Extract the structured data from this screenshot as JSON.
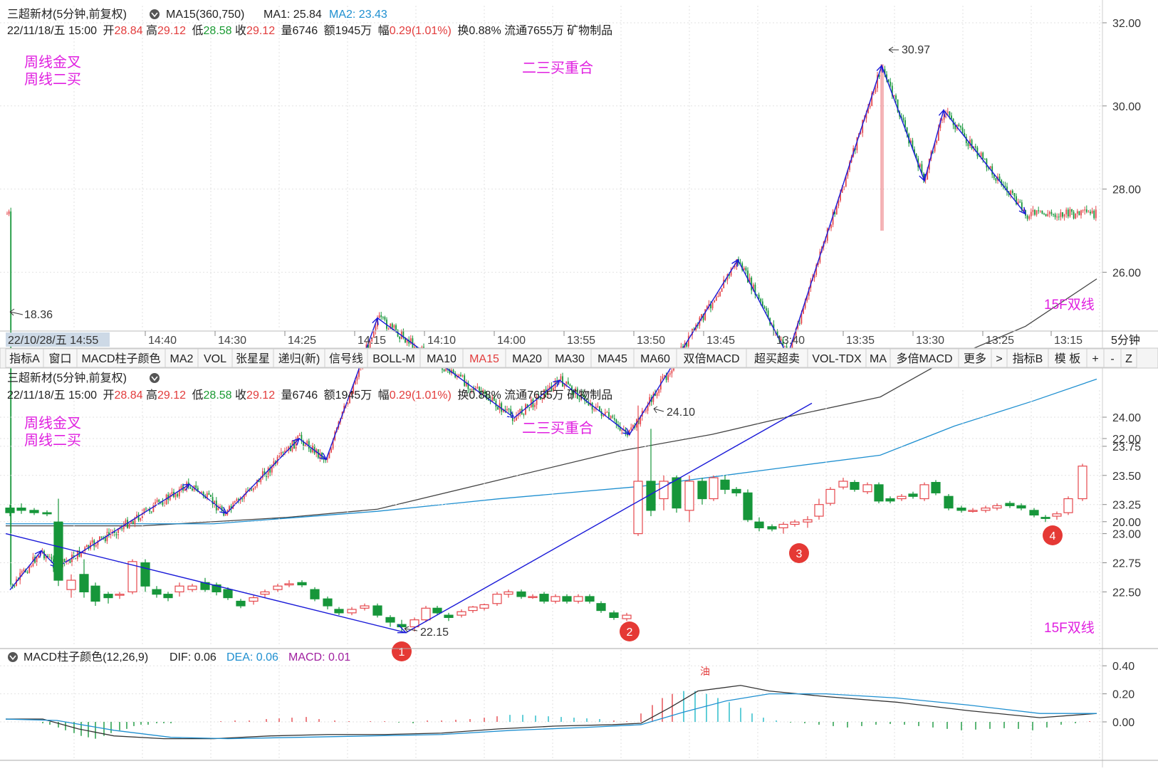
{
  "top": {
    "stock_line": "三超新材(5分钟,前复权)",
    "ma_ind": "MA15(360,750)",
    "ma1": "MA1: 25.84",
    "ma2": "MA2: 23.43",
    "info": {
      "dt": "22/11/18/五 15:00",
      "open_lbl": "开",
      "open": "28.84",
      "high_lbl": "高",
      "high": "29.12",
      "low_lbl": "低",
      "low": "28.58",
      "close_lbl": "收",
      "close": "29.12",
      "vol": "量6746",
      "amount": "额1945万",
      "chg_lbl": "幅",
      "chg": "0.29(1.01%)",
      "rest": "换0.88% 流通7655万 矿物制品"
    },
    "note_left1": "周线金叉",
    "note_left2": "周线二买",
    "note_mid": "二三买重合",
    "note_right": "15F双线",
    "yticks": [
      "32.00",
      "30.00",
      "28.00",
      "26.00",
      "24.00",
      "22.00",
      "20.00"
    ],
    "high_label": "30.97",
    "low_label": "18.36"
  },
  "timeaxis": {
    "cursor": "22/10/28/五 14:55",
    "ticks": [
      "14:40",
      "14:30",
      "14:25",
      "14:15",
      "14:10",
      "14:00",
      "13:55",
      "13:50",
      "13:45",
      "13:40",
      "13:35",
      "13:30",
      "13:25",
      "13:15"
    ],
    "period": "5分钟"
  },
  "toolbar": {
    "items": [
      "指标A",
      "窗口",
      "MACD柱子颜色",
      "MA2",
      "VOL",
      "张星星",
      "递归(新)",
      "信号线",
      "BOLL-M",
      "MA10",
      "MA15",
      "MA20",
      "MA30",
      "MA45",
      "MA60",
      "双倍MACD",
      "超买超卖",
      "VOL-TDX",
      "MA",
      "多倍MACD",
      "更多",
      ">",
      "指标B",
      "模 板",
      "+",
      "-",
      "Z"
    ],
    "active": "MA15"
  },
  "bottom": {
    "stock_line": "三超新材(5分钟,前复权)",
    "yticks": [
      "24.00",
      "23.75",
      "23.50",
      "23.25",
      "23.00",
      "22.75",
      "22.50"
    ],
    "high_label": "24.10",
    "low_label": "22.15",
    "markers": [
      "1",
      "2",
      "3",
      "4"
    ]
  },
  "macd": {
    "title": "MACD柱子颜色(12,26,9)",
    "dif": "DIF: 0.06",
    "dea": "DEA: 0.06",
    "macd": "MACD: 0.01",
    "yticks": [
      "0.40",
      "0.20",
      "0.00"
    ],
    "tag": "油"
  },
  "chart_data": [
    {
      "type": "candlestick",
      "title": "三超新材(5分钟,前复权)",
      "ylim": [
        18.0,
        32.0
      ],
      "series": [
        {
          "name": "MA1",
          "last": 25.84
        },
        {
          "name": "MA2",
          "last": 23.43
        }
      ],
      "zigzag": [
        18.36,
        19.3,
        18.9,
        20.9,
        20.2,
        22.0,
        21.5,
        24.9,
        22.5,
        23.4,
        22.1,
        26.3,
        24.0,
        30.97,
        28.2,
        29.9,
        27.4
      ]
    },
    {
      "type": "candlestick",
      "title": "三超新材(5分钟,前复权)",
      "ylim": [
        22.0,
        24.2
      ],
      "extremes": {
        "high": 24.1,
        "low": 22.15
      }
    },
    {
      "type": "bar",
      "title": "MACD柱子颜色(12,26,9)",
      "ylim": [
        -0.18,
        0.45
      ],
      "series": [
        {
          "name": "DIF",
          "last": 0.06
        },
        {
          "name": "DEA",
          "last": 0.06
        },
        {
          "name": "MACD",
          "last": 0.01
        }
      ]
    }
  ]
}
